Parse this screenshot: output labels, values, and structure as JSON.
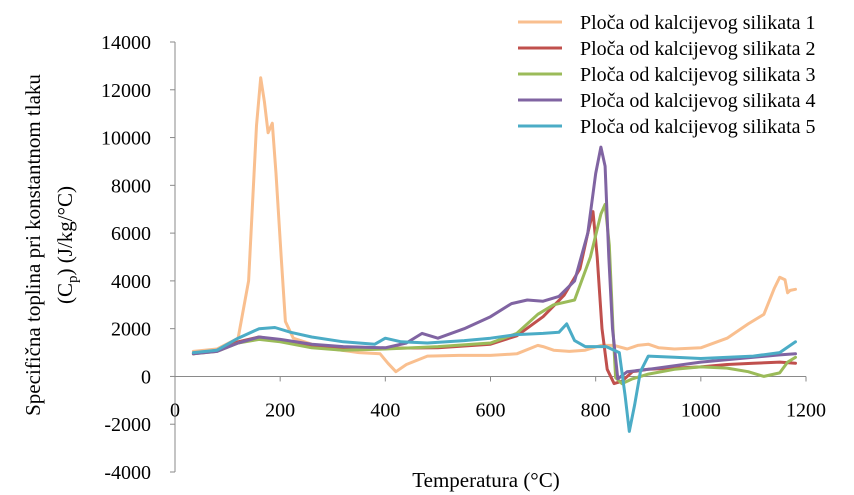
{
  "chart_data": {
    "type": "line",
    "title": "",
    "xlabel": "Temperatura (°C)",
    "ylabel_line1": "Specifična toplina pri konstantnom tlaku",
    "ylabel_line2_prefix": "(C",
    "ylabel_line2_sub": "p",
    "ylabel_line2_suffix": ") (J/kg/°C)",
    "xlim": [
      0,
      1200
    ],
    "ylim": [
      -4000,
      14000
    ],
    "xticks": [
      0,
      200,
      400,
      600,
      800,
      1000,
      1200
    ],
    "yticks": [
      -4000,
      -2000,
      0,
      2000,
      4000,
      6000,
      8000,
      10000,
      12000,
      14000
    ],
    "grid": false,
    "legend_position": "top-right",
    "series": [
      {
        "name": "Ploča od kalcijevog silikata 1",
        "color": "#F9BF8F",
        "points": [
          [
            35,
            1050
          ],
          [
            80,
            1150
          ],
          [
            120,
            1600
          ],
          [
            140,
            4000
          ],
          [
            155,
            10500
          ],
          [
            163,
            12500
          ],
          [
            170,
            11500
          ],
          [
            177,
            10200
          ],
          [
            185,
            10600
          ],
          [
            192,
            8500
          ],
          [
            202,
            5000
          ],
          [
            210,
            2300
          ],
          [
            225,
            1600
          ],
          [
            260,
            1350
          ],
          [
            300,
            1150
          ],
          [
            350,
            1000
          ],
          [
            390,
            950
          ],
          [
            405,
            550
          ],
          [
            420,
            200
          ],
          [
            440,
            500
          ],
          [
            480,
            850
          ],
          [
            540,
            880
          ],
          [
            600,
            880
          ],
          [
            650,
            950
          ],
          [
            690,
            1300
          ],
          [
            700,
            1250
          ],
          [
            720,
            1100
          ],
          [
            750,
            1050
          ],
          [
            780,
            1100
          ],
          [
            810,
            1300
          ],
          [
            835,
            1300
          ],
          [
            860,
            1150
          ],
          [
            880,
            1300
          ],
          [
            900,
            1350
          ],
          [
            920,
            1200
          ],
          [
            950,
            1150
          ],
          [
            1000,
            1200
          ],
          [
            1050,
            1600
          ],
          [
            1090,
            2200
          ],
          [
            1120,
            2600
          ],
          [
            1140,
            3700
          ],
          [
            1150,
            4150
          ],
          [
            1160,
            4050
          ],
          [
            1165,
            3500
          ],
          [
            1170,
            3600
          ],
          [
            1180,
            3650
          ]
        ]
      },
      {
        "name": "Ploča od kalcijevog silikata 2",
        "color": "#C0504D",
        "points": [
          [
            35,
            950
          ],
          [
            80,
            1100
          ],
          [
            120,
            1450
          ],
          [
            160,
            1650
          ],
          [
            200,
            1500
          ],
          [
            260,
            1250
          ],
          [
            320,
            1150
          ],
          [
            400,
            1180
          ],
          [
            500,
            1200
          ],
          [
            600,
            1350
          ],
          [
            650,
            1700
          ],
          [
            700,
            2500
          ],
          [
            740,
            3400
          ],
          [
            770,
            4500
          ],
          [
            785,
            6000
          ],
          [
            795,
            6900
          ],
          [
            803,
            5000
          ],
          [
            812,
            2000
          ],
          [
            822,
            300
          ],
          [
            835,
            -300
          ],
          [
            850,
            -200
          ],
          [
            870,
            200
          ],
          [
            900,
            300
          ],
          [
            950,
            350
          ],
          [
            1000,
            400
          ],
          [
            1050,
            500
          ],
          [
            1100,
            550
          ],
          [
            1150,
            600
          ],
          [
            1180,
            550
          ]
        ]
      },
      {
        "name": "Ploča od kalcijevog silikata 3",
        "color": "#9BBB59",
        "points": [
          [
            35,
            950
          ],
          [
            80,
            1050
          ],
          [
            120,
            1400
          ],
          [
            160,
            1550
          ],
          [
            200,
            1450
          ],
          [
            260,
            1200
          ],
          [
            320,
            1100
          ],
          [
            400,
            1150
          ],
          [
            500,
            1250
          ],
          [
            600,
            1400
          ],
          [
            650,
            1800
          ],
          [
            690,
            2600
          ],
          [
            720,
            3000
          ],
          [
            760,
            3200
          ],
          [
            790,
            5000
          ],
          [
            810,
            6800
          ],
          [
            818,
            7200
          ],
          [
            826,
            5500
          ],
          [
            833,
            2000
          ],
          [
            838,
            -50
          ],
          [
            850,
            -300
          ],
          [
            870,
            -100
          ],
          [
            900,
            100
          ],
          [
            950,
            300
          ],
          [
            1000,
            400
          ],
          [
            1050,
            350
          ],
          [
            1090,
            200
          ],
          [
            1120,
            0
          ],
          [
            1150,
            150
          ],
          [
            1165,
            600
          ],
          [
            1180,
            800
          ]
        ]
      },
      {
        "name": "Ploča od kalcijevog silikata 4",
        "color": "#8064A2",
        "points": [
          [
            35,
            950
          ],
          [
            80,
            1050
          ],
          [
            120,
            1400
          ],
          [
            160,
            1650
          ],
          [
            200,
            1550
          ],
          [
            260,
            1350
          ],
          [
            320,
            1250
          ],
          [
            400,
            1200
          ],
          [
            440,
            1400
          ],
          [
            470,
            1800
          ],
          [
            500,
            1600
          ],
          [
            550,
            2000
          ],
          [
            600,
            2500
          ],
          [
            640,
            3050
          ],
          [
            670,
            3200
          ],
          [
            700,
            3150
          ],
          [
            730,
            3350
          ],
          [
            760,
            4000
          ],
          [
            785,
            6000
          ],
          [
            800,
            8500
          ],
          [
            810,
            9600
          ],
          [
            818,
            8800
          ],
          [
            825,
            5000
          ],
          [
            832,
            2000
          ],
          [
            842,
            -100
          ],
          [
            860,
            200
          ],
          [
            900,
            300
          ],
          [
            1000,
            600
          ],
          [
            1100,
            800
          ],
          [
            1150,
            900
          ],
          [
            1180,
            950
          ]
        ]
      },
      {
        "name": "Ploča od kalcijevog silikata 5",
        "color": "#4BACC6",
        "points": [
          [
            35,
            1000
          ],
          [
            80,
            1100
          ],
          [
            120,
            1600
          ],
          [
            160,
            2000
          ],
          [
            190,
            2050
          ],
          [
            220,
            1850
          ],
          [
            260,
            1650
          ],
          [
            320,
            1450
          ],
          [
            380,
            1350
          ],
          [
            400,
            1600
          ],
          [
            430,
            1450
          ],
          [
            480,
            1400
          ],
          [
            550,
            1500
          ],
          [
            600,
            1600
          ],
          [
            650,
            1750
          ],
          [
            700,
            1800
          ],
          [
            730,
            1850
          ],
          [
            745,
            2200
          ],
          [
            760,
            1500
          ],
          [
            780,
            1250
          ],
          [
            820,
            1250
          ],
          [
            845,
            1000
          ],
          [
            856,
            -800
          ],
          [
            864,
            -2300
          ],
          [
            874,
            -1200
          ],
          [
            885,
            200
          ],
          [
            900,
            850
          ],
          [
            950,
            800
          ],
          [
            1000,
            750
          ],
          [
            1100,
            850
          ],
          [
            1150,
            1000
          ],
          [
            1180,
            1450
          ]
        ]
      }
    ]
  }
}
